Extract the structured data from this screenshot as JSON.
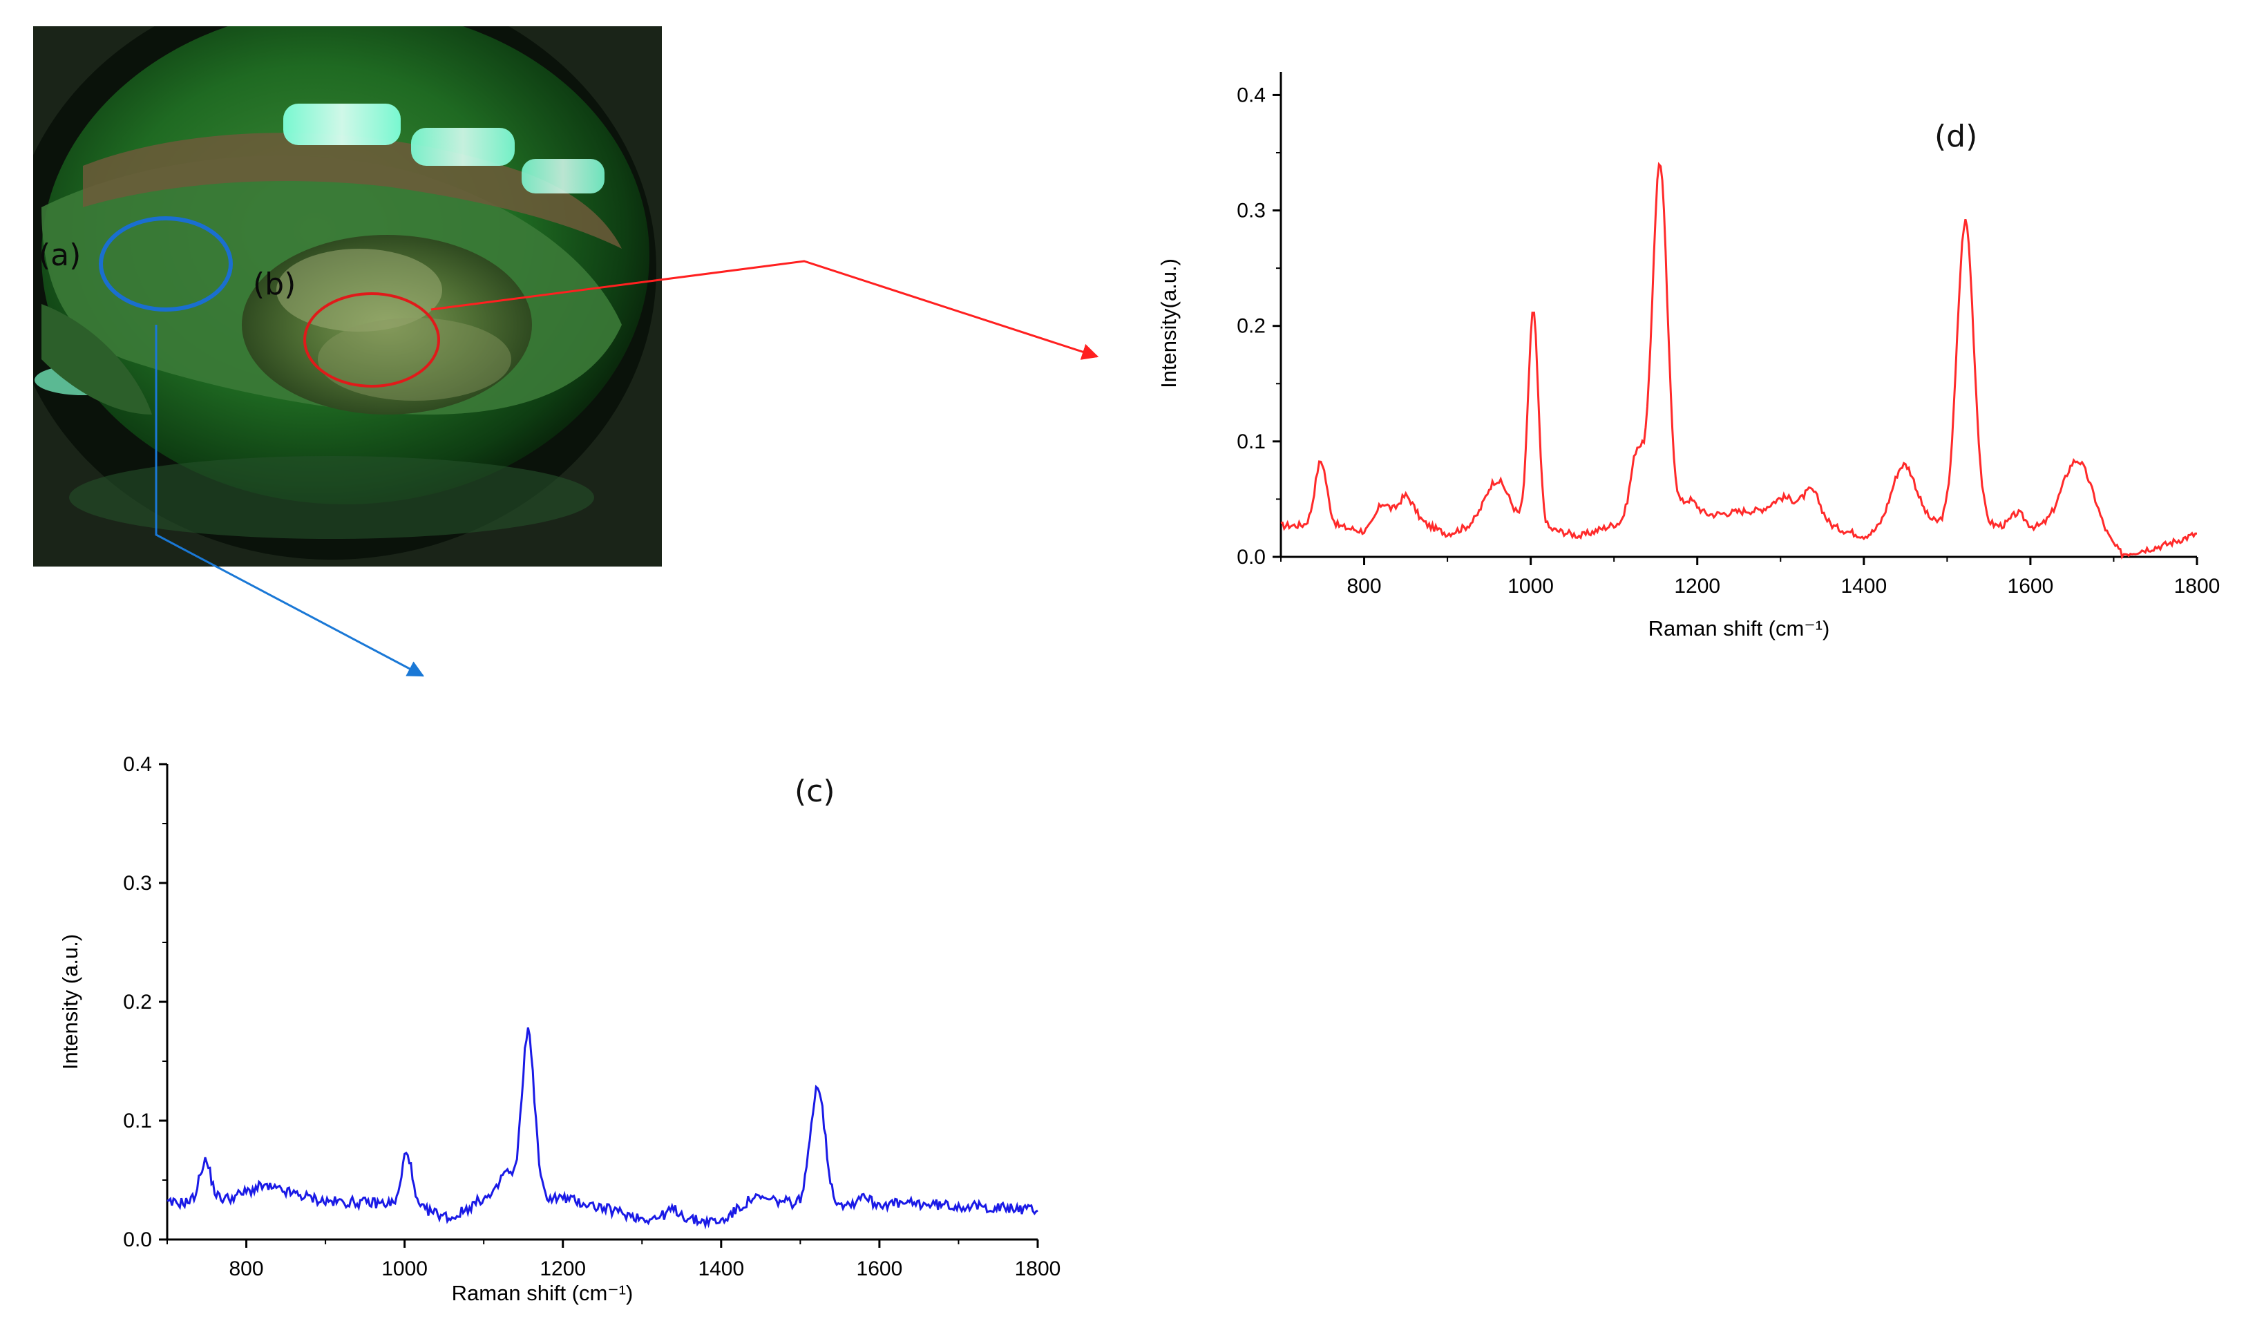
{
  "photo": {
    "label_a": "(a)",
    "label_b": "(b)",
    "circle_a_color": "#1a6fd0",
    "circle_b_color": "#e01a1a"
  },
  "chart_data": [
    {
      "id": "d",
      "type": "line",
      "panel_label": "(d)",
      "xlabel": "Raman shift (cm⁻¹)",
      "ylabel": "Intensity(a.u.)",
      "xlim": [
        700,
        1800
      ],
      "ylim": [
        0,
        0.42
      ],
      "xticks": [
        800,
        1000,
        1200,
        1400,
        1600,
        1800
      ],
      "yticks": [
        0.0,
        0.1,
        0.2,
        0.3,
        0.4
      ],
      "ytick_labels": [
        "0.0",
        "0.1",
        "0.2",
        "0.3",
        "0.4"
      ],
      "color": "#ff2a2a",
      "baseline": [
        [
          700,
          0.027
        ],
        [
          760,
          0.028
        ],
        [
          800,
          0.022
        ],
        [
          850,
          0.035
        ],
        [
          900,
          0.02
        ],
        [
          950,
          0.032
        ],
        [
          1000,
          0.028
        ],
        [
          1060,
          0.018
        ],
        [
          1100,
          0.028
        ],
        [
          1200,
          0.035
        ],
        [
          1260,
          0.04
        ],
        [
          1320,
          0.035
        ],
        [
          1400,
          0.018
        ],
        [
          1500,
          0.03
        ],
        [
          1600,
          0.025
        ],
        [
          1680,
          0.02
        ],
        [
          1710,
          0.002
        ],
        [
          1760,
          0.01
        ],
        [
          1800,
          0.02
        ]
      ],
      "peaks": [
        [
          748,
          0.055,
          7
        ],
        [
          822,
          0.018,
          8
        ],
        [
          850,
          0.018,
          10
        ],
        [
          960,
          0.035,
          14
        ],
        [
          1003,
          0.185,
          6
        ],
        [
          1128,
          0.062,
          8
        ],
        [
          1155,
          0.31,
          9
        ],
        [
          1190,
          0.015,
          10
        ],
        [
          1305,
          0.015,
          15
        ],
        [
          1338,
          0.025,
          10
        ],
        [
          1448,
          0.056,
          15
        ],
        [
          1522,
          0.262,
          10
        ],
        [
          1585,
          0.012,
          8
        ],
        [
          1656,
          0.062,
          18
        ]
      ]
    },
    {
      "id": "c",
      "type": "line",
      "panel_label": "(c)",
      "xlabel": "Raman shift (cm⁻¹)",
      "ylabel": "Intensity (a.u.)",
      "xlim": [
        700,
        1800
      ],
      "ylim": [
        0,
        0.4
      ],
      "xticks": [
        800,
        1000,
        1200,
        1400,
        1600,
        1800
      ],
      "yticks": [
        0.0,
        0.1,
        0.2,
        0.3,
        0.4
      ],
      "ytick_labels": [
        "0.0",
        "0.1",
        "0.2",
        "0.3",
        "0.4"
      ],
      "color": "#1a1ae6",
      "baseline": [
        [
          700,
          0.03
        ],
        [
          780,
          0.035
        ],
        [
          820,
          0.045
        ],
        [
          900,
          0.032
        ],
        [
          1000,
          0.03
        ],
        [
          1060,
          0.018
        ],
        [
          1100,
          0.035
        ],
        [
          1200,
          0.035
        ],
        [
          1300,
          0.018
        ],
        [
          1400,
          0.015
        ],
        [
          1440,
          0.035
        ],
        [
          1500,
          0.03
        ],
        [
          1560,
          0.03
        ],
        [
          1650,
          0.03
        ],
        [
          1800,
          0.025
        ]
      ],
      "peaks": [
        [
          748,
          0.033,
          7
        ],
        [
          1003,
          0.045,
          6
        ],
        [
          1128,
          0.022,
          8
        ],
        [
          1156,
          0.14,
          8
        ],
        [
          1340,
          0.008,
          10
        ],
        [
          1522,
          0.1,
          9
        ],
        [
          1580,
          0.008,
          6
        ]
      ]
    }
  ]
}
